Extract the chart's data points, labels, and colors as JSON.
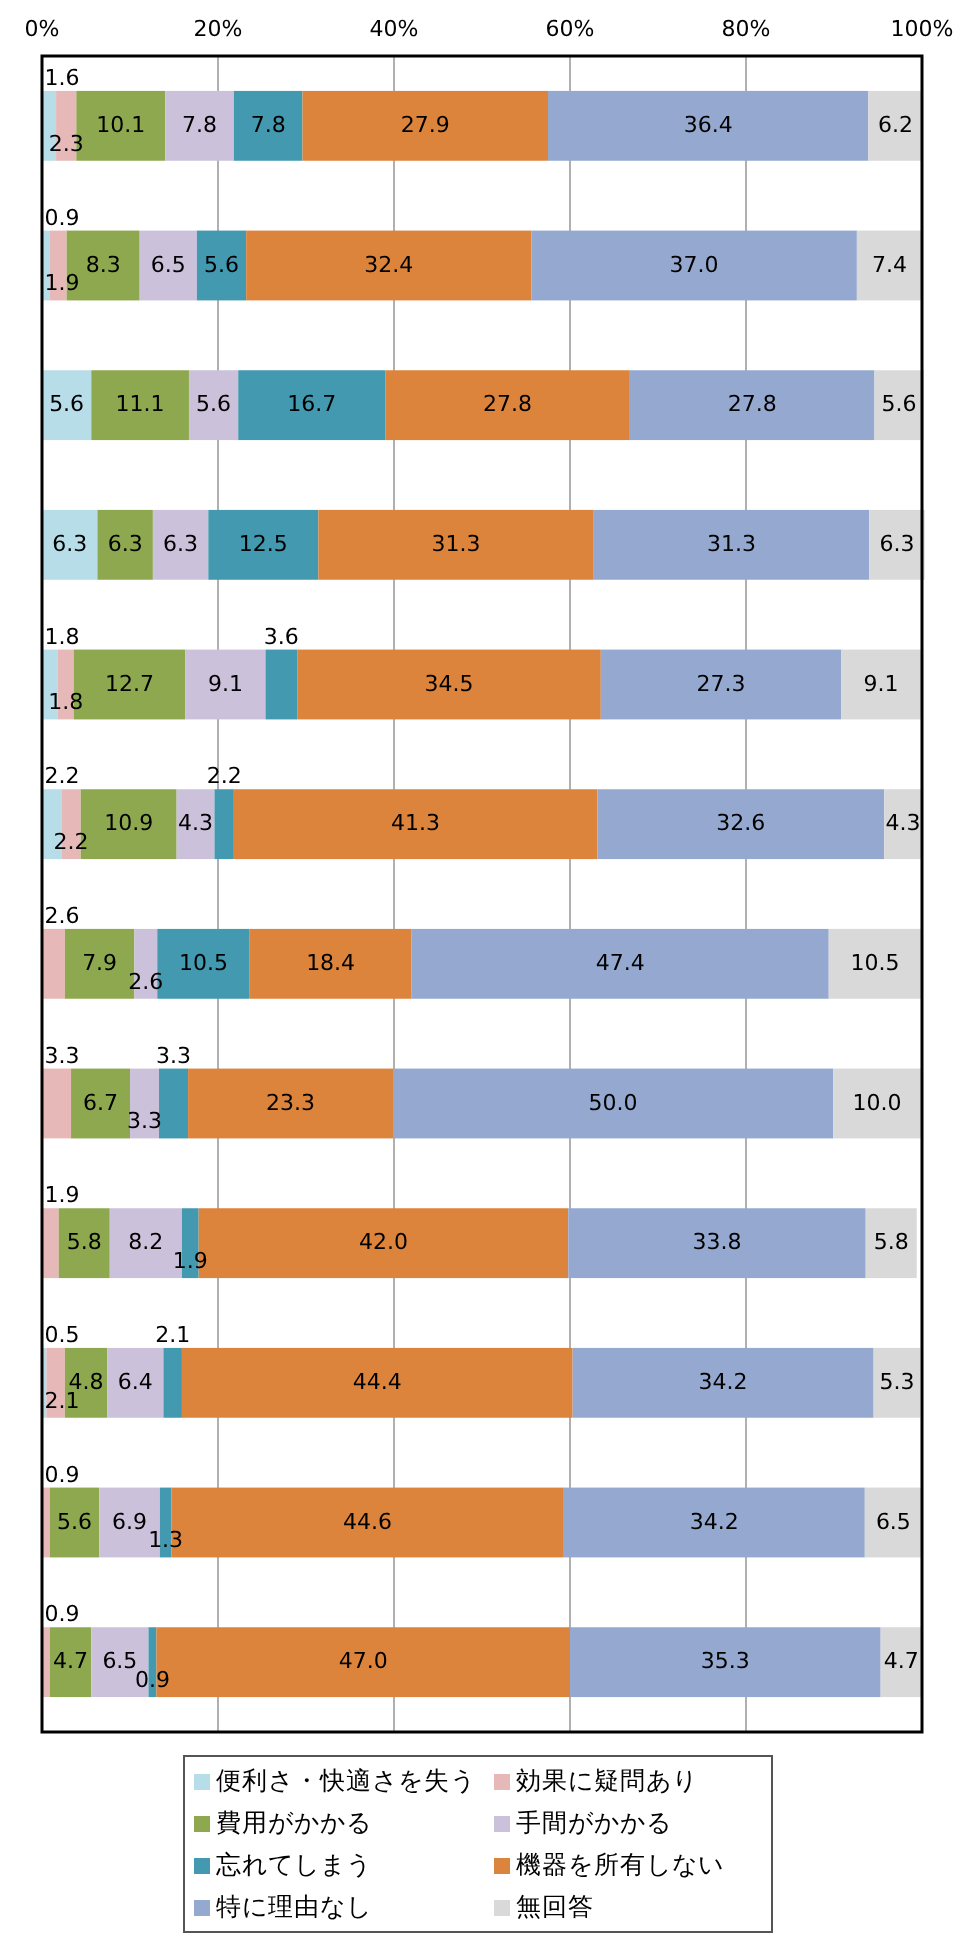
{
  "chart_data": {
    "type": "bar",
    "orientation": "horizontal",
    "stacked": true,
    "data_labels": true,
    "grid": "x",
    "legend": "bottom",
    "categories": [
      null,
      null,
      null,
      null,
      null,
      null,
      null,
      null,
      null,
      null,
      null,
      null
    ],
    "xlim": [
      0,
      100
    ],
    "xticks": [
      {
        "value": 0,
        "label": "0%"
      },
      {
        "value": 20,
        "label": "20%"
      },
      {
        "value": 40,
        "label": "40%"
      },
      {
        "value": 60,
        "label": "60%"
      },
      {
        "value": 80,
        "label": "80%"
      },
      {
        "value": 100,
        "label": "100%"
      }
    ],
    "tick_labels": "x",
    "series": [
      {
        "name": "便利さ・快適さを失う",
        "color": "#b7dde8",
        "values": [
          1.6,
          0.9,
          5.6,
          6.3,
          1.8,
          2.2,
          null,
          null,
          null,
          0.5,
          null,
          null
        ]
      },
      {
        "name": "効果に疑問あり",
        "color": "#e6b9b8",
        "values": [
          2.3,
          1.9,
          null,
          null,
          1.8,
          2.2,
          2.6,
          3.3,
          1.9,
          2.1,
          0.9,
          0.9
        ]
      },
      {
        "name": "費用がかかる",
        "color": "#8ea84f",
        "values": [
          10.1,
          8.3,
          11.1,
          6.3,
          12.7,
          10.9,
          7.9,
          6.7,
          5.8,
          4.8,
          5.6,
          4.7
        ]
      },
      {
        "name": "手間がかかる",
        "color": "#ccc1da",
        "values": [
          7.8,
          6.5,
          5.6,
          6.3,
          9.1,
          4.3,
          2.6,
          3.3,
          8.2,
          6.4,
          6.9,
          6.5
        ]
      },
      {
        "name": "忘れてしまう",
        "color": "#4299b0",
        "values": [
          7.8,
          5.6,
          16.7,
          12.5,
          3.6,
          2.2,
          10.5,
          3.3,
          1.9,
          2.1,
          1.3,
          0.9
        ]
      },
      {
        "name": "機器を所有しない",
        "color": "#dd843c",
        "values": [
          27.9,
          32.4,
          27.8,
          31.3,
          34.5,
          41.3,
          18.4,
          23.3,
          42.0,
          44.4,
          44.6,
          47.0
        ],
        "value_labels": [
          "27.9",
          "32.4",
          "27.8",
          "31.3",
          "34.5",
          "41.3",
          "18.4",
          "23.3",
          "42.0",
          "44.4",
          "44.6",
          "47.0"
        ]
      },
      {
        "name": "特に理由なし",
        "color": "#95a9d0",
        "values": [
          36.4,
          37.0,
          27.8,
          31.3,
          27.3,
          32.6,
          47.4,
          50.0,
          33.8,
          34.2,
          34.2,
          35.3
        ],
        "value_labels": [
          "36.4",
          "37.0",
          "27.8",
          "31.3",
          "27.3",
          "32.6",
          "47.4",
          "50.0",
          "33.8",
          "34.2",
          "34.2",
          "35.3"
        ]
      },
      {
        "name": "無回答",
        "color": "#d9d9d9",
        "values": [
          6.2,
          7.4,
          5.6,
          6.3,
          9.1,
          4.3,
          10.5,
          10.0,
          5.8,
          5.3,
          6.5,
          4.7
        ],
        "value_labels": [
          "6.2",
          "7.4",
          "5.6",
          "6.3",
          "9.1",
          "4.3",
          "10.5",
          "10.0",
          "5.8",
          "5.3",
          "6.5",
          "4.7"
        ]
      }
    ]
  }
}
